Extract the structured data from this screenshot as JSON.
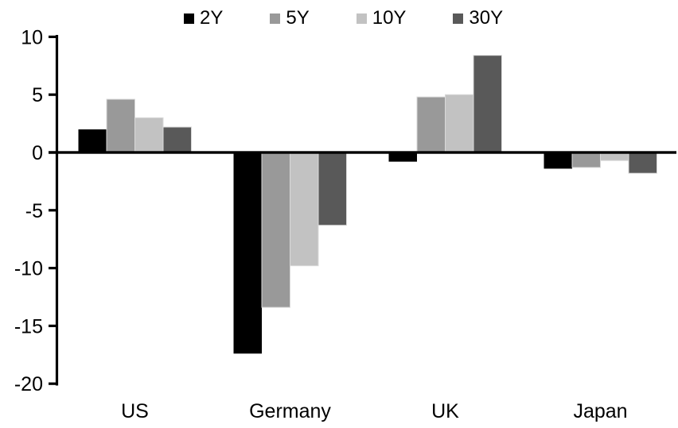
{
  "chart_data": {
    "type": "bar",
    "title": "",
    "xlabel": "",
    "ylabel": "",
    "categories": [
      "US",
      "Germany",
      "UK",
      "Japan"
    ],
    "series": [
      {
        "name": "2Y",
        "color": "#000000",
        "values": [
          2.0,
          -17.4,
          -0.8,
          -1.4
        ]
      },
      {
        "name": "5Y",
        "color": "#999999",
        "values": [
          4.6,
          -13.4,
          4.8,
          -1.3
        ]
      },
      {
        "name": "10Y",
        "color": "#c2c2c2",
        "values": [
          3.0,
          -9.8,
          5.0,
          -0.7
        ]
      },
      {
        "name": "30Y",
        "color": "#595959",
        "values": [
          2.2,
          -6.3,
          8.4,
          -1.8
        ]
      }
    ],
    "ylim": [
      -20,
      10
    ],
    "yticks": [
      {
        "value": 10,
        "label": "10"
      },
      {
        "value": 5,
        "label": "5"
      },
      {
        "value": 0,
        "label": "0"
      },
      {
        "value": -5,
        "label": "-5"
      },
      {
        "value": -10,
        "label": "-10"
      },
      {
        "value": -15,
        "label": "-15"
      },
      {
        "value": -20,
        "label": "-20"
      }
    ],
    "legend_position": "top",
    "grid": false,
    "axis_color": "#000000",
    "background": "#ffffff",
    "bar_border_color": "#d9d9d9"
  }
}
